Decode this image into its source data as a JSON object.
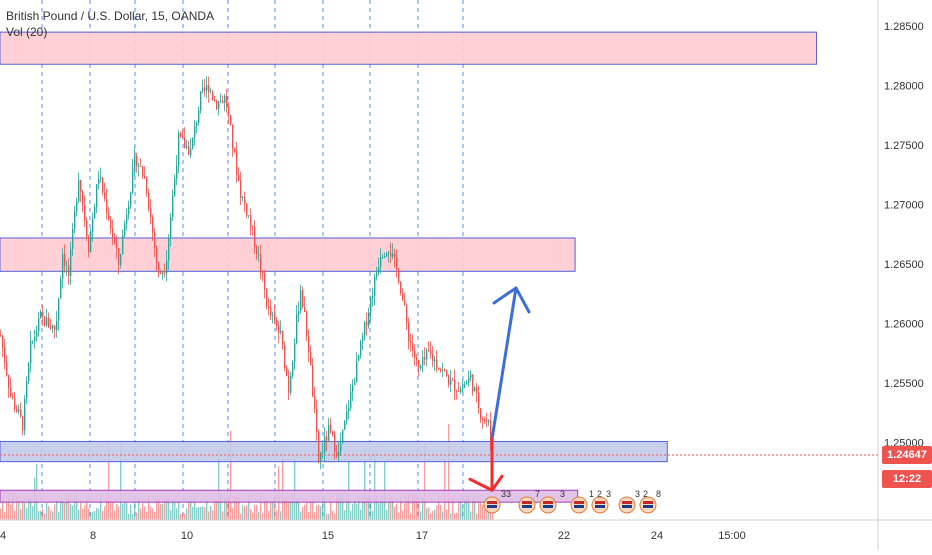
{
  "header": {
    "symbol_line": "British Pound / U.S. Dollar, 15, OANDA",
    "indicator_line": "Vol (20)"
  },
  "price_axis": {
    "labels": [
      "1.28500",
      "1.28000",
      "1.27500",
      "1.27000",
      "1.26500",
      "1.26000",
      "1.25500",
      "1.25000"
    ],
    "current_price": "1.24647",
    "countdown": "12:22",
    "current_color": "#ef5350",
    "countdown_color": "#ef5350"
  },
  "time_axis": {
    "labels": [
      "4",
      "8",
      "10",
      "15",
      "17",
      "22",
      "24",
      "15:00"
    ]
  },
  "events": {
    "labels": [
      "33",
      "7",
      "3",
      "1",
      "2",
      "3",
      "3",
      "2",
      "8"
    ]
  },
  "colors": {
    "up": "#26a69a",
    "down": "#ef5350",
    "zone_red_fill": "#ffcdd2",
    "zone_blue_fill": "#c5cae9",
    "zone_purple_fill": "#e1bee7",
    "zone_border_blue": "#3f51d5",
    "zone_border_purple": "#9c27b0",
    "up_arrow": "#3c6fd6",
    "down_arrow": "#f22d2d",
    "grid_session": "#2962ff"
  },
  "chart_data": {
    "type": "candlestick",
    "symbol": "British Pound / U.S. Dollar",
    "interval": "15",
    "source": "OANDA",
    "ylim": [
      1.244,
      1.286
    ],
    "price_ticks": [
      1.285,
      1.28,
      1.275,
      1.27,
      1.265,
      1.26,
      1.255,
      1.25
    ],
    "path": [
      [
        0,
        1.259
      ],
      [
        10,
        1.254
      ],
      [
        22,
        1.2515
      ],
      [
        30,
        1.258
      ],
      [
        40,
        1.2605
      ],
      [
        55,
        1.2595
      ],
      [
        62,
        1.266
      ],
      [
        68,
        1.264
      ],
      [
        78,
        1.2725
      ],
      [
        88,
        1.2665
      ],
      [
        98,
        1.2725
      ],
      [
        108,
        1.269
      ],
      [
        118,
        1.265
      ],
      [
        125,
        1.269
      ],
      [
        135,
        1.274
      ],
      [
        145,
        1.272
      ],
      [
        158,
        1.264
      ],
      [
        165,
        1.265
      ],
      [
        178,
        1.2755
      ],
      [
        190,
        1.2745
      ],
      [
        200,
        1.279
      ],
      [
        208,
        1.28
      ],
      [
        215,
        1.2785
      ],
      [
        225,
        1.279
      ],
      [
        232,
        1.275
      ],
      [
        240,
        1.271
      ],
      [
        248,
        1.269
      ],
      [
        258,
        1.2655
      ],
      [
        268,
        1.261
      ],
      [
        280,
        1.259
      ],
      [
        288,
        1.2545
      ],
      [
        300,
        1.263
      ],
      [
        308,
        1.258
      ],
      [
        318,
        1.2485
      ],
      [
        328,
        1.251
      ],
      [
        338,
        1.249
      ],
      [
        350,
        1.254
      ],
      [
        360,
        1.258
      ],
      [
        370,
        1.262
      ],
      [
        380,
        1.266
      ],
      [
        388,
        1.2665
      ],
      [
        398,
        1.264
      ],
      [
        408,
        1.259
      ],
      [
        418,
        1.256
      ],
      [
        428,
        1.2575
      ],
      [
        438,
        1.2565
      ],
      [
        450,
        1.255
      ],
      [
        460,
        1.2545
      ],
      [
        470,
        1.2555
      ],
      [
        480,
        1.2525
      ],
      [
        488,
        1.2515
      ],
      [
        492,
        1.2492
      ]
    ],
    "volume_note": "Vol (20)",
    "zones": [
      {
        "color": "red",
        "price_top": 1.2845,
        "price_bottom": 1.2818,
        "x_end_frac": 0.93
      },
      {
        "color": "red",
        "price_top": 1.2672,
        "price_bottom": 1.2644,
        "x_end_frac": 0.655
      },
      {
        "color": "blue",
        "price_top": 1.2501,
        "price_bottom": 1.2484,
        "x_end_frac": 0.76
      },
      {
        "color": "purple",
        "price_top": 1.246,
        "price_bottom": 1.245,
        "x_end_frac": 0.658
      }
    ],
    "projections": [
      {
        "direction": "up",
        "from_price": 1.2503,
        "to_price": 1.263
      },
      {
        "direction": "down",
        "from_price": 1.2503,
        "to_price": 1.246
      }
    ],
    "current_price": 1.24647
  }
}
